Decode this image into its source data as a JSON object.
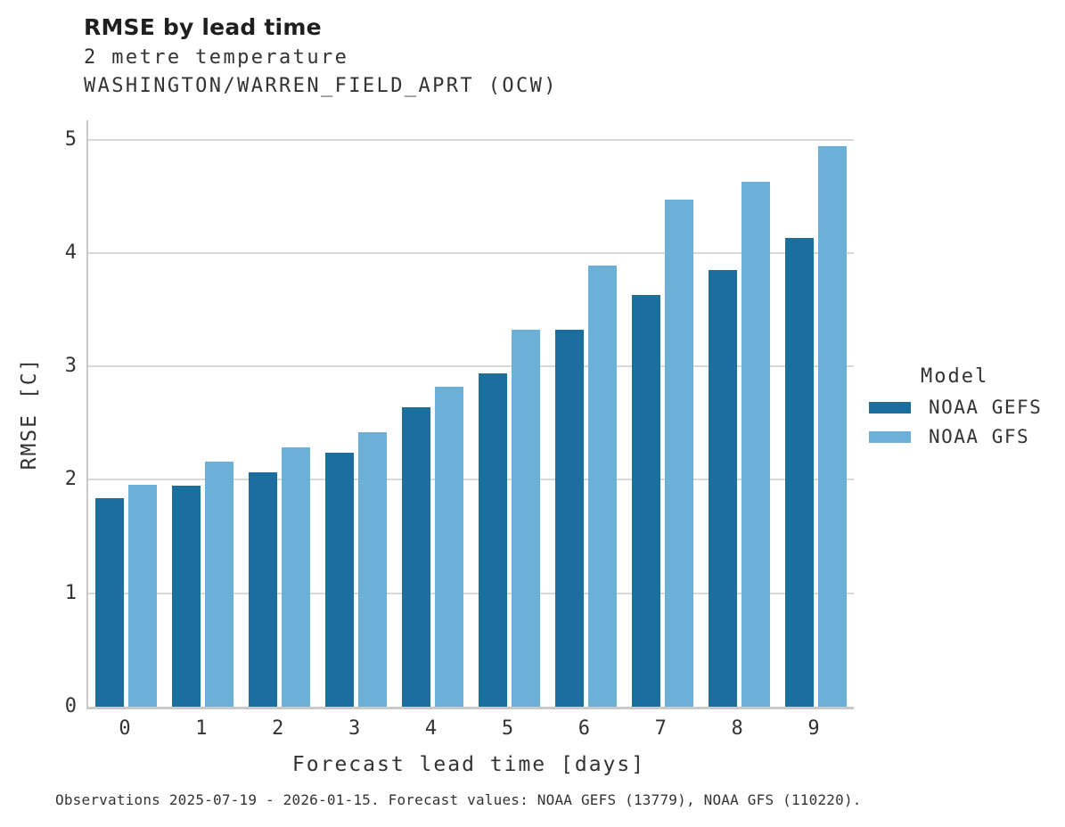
{
  "header": {
    "title": "RMSE by lead time",
    "subtitle_line1": "2 metre temperature",
    "subtitle_line2": "WASHINGTON/WARREN_FIELD_APRT (OCW)"
  },
  "legend": {
    "title": "Model",
    "entries": [
      {
        "label": "NOAA GEFS",
        "color": "#1c6e9e"
      },
      {
        "label": "NOAA GFS",
        "color": "#6cb0d8"
      }
    ]
  },
  "footer": {
    "note": "Observations 2025-07-19 - 2026-01-15. Forecast values: NOAA GEFS (13779), NOAA GFS (110220)."
  },
  "colors": {
    "gridline": "#d9d9d9",
    "spine": "#c9c9c9",
    "background": "#ffffff"
  },
  "chart_data": {
    "type": "bar",
    "title": "RMSE by lead time",
    "subtitle": "2 metre temperature — WASHINGTON/WARREN_FIELD_APRT (OCW)",
    "xlabel": "Forecast lead time [days]",
    "ylabel": "RMSE [C]",
    "categories": [
      "0",
      "1",
      "2",
      "3",
      "4",
      "5",
      "6",
      "7",
      "8",
      "9"
    ],
    "series": [
      {
        "name": "NOAA GEFS",
        "color": "#1c6e9e",
        "values": [
          1.84,
          1.95,
          2.07,
          2.24,
          2.64,
          2.94,
          3.32,
          3.63,
          3.85,
          4.13
        ]
      },
      {
        "name": "NOAA GFS",
        "color": "#6cb0d8",
        "values": [
          1.96,
          2.16,
          2.29,
          2.42,
          2.82,
          3.32,
          3.89,
          4.47,
          4.63,
          4.94
        ]
      }
    ],
    "ylim": [
      0,
      5.17
    ],
    "yticks": [
      0,
      1,
      2,
      3,
      4,
      5
    ],
    "grid": "horizontal",
    "legend_position": "right",
    "legend_title": "Model"
  }
}
